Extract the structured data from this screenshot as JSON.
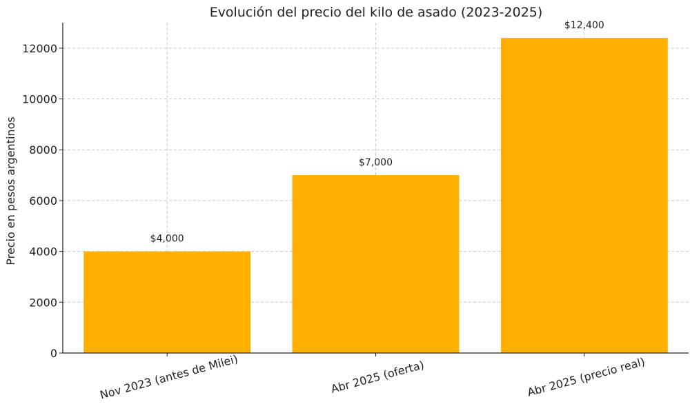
{
  "chart_data": {
    "type": "bar",
    "title": "Evolución del precio del kilo de asado (2023-2025)",
    "xlabel": "",
    "ylabel": "Precio en pesos argentinos",
    "categories": [
      "Nov 2023 (antes de Milei)",
      "Abr 2025 (oferta)",
      "Abr 2025 (precio real)"
    ],
    "values": [
      4000,
      7000,
      12400
    ],
    "value_labels": [
      "$4,000",
      "$7,000",
      "$12,400"
    ],
    "ylim": [
      0,
      13000
    ],
    "yticks": [
      0,
      2000,
      4000,
      6000,
      8000,
      10000,
      12000
    ],
    "ytick_labels": [
      "0",
      "2000",
      "4000",
      "6000",
      "8000",
      "10000",
      "12000"
    ],
    "grid": true,
    "bar_color": "#FFB000",
    "grid_color": "#c8c8c8",
    "axis_color": "#222222",
    "text_color": "#222222"
  }
}
